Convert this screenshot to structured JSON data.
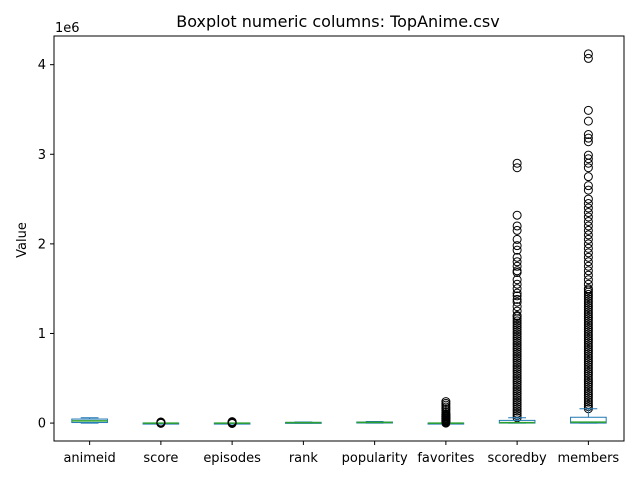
{
  "chart_data": {
    "type": "box",
    "title": "Boxplot numeric columns: TopAnime.csv",
    "xlabel": "",
    "ylabel": "Value",
    "y_offset_text": "1e6",
    "y_scale_factor": 1000000,
    "ylim": [
      -0.2,
      4.32
    ],
    "yticks": [
      0,
      1,
      2,
      3,
      4
    ],
    "grid": false,
    "legend": "none",
    "colors": {
      "box": "#1f77b4",
      "median": "#2ca02c",
      "flier_edge": "#000000",
      "axes": "#000000"
    },
    "categories": [
      "animeid",
      "score",
      "episodes",
      "rank",
      "popularity",
      "favorites",
      "scoredby",
      "members"
    ],
    "boxes": [
      {
        "name": "animeid",
        "whislo": 0.0,
        "q1": 0.006,
        "med": 0.025,
        "q3": 0.045,
        "whishi": 0.06,
        "fliers": []
      },
      {
        "name": "score",
        "whislo": 0.0,
        "q1": 0.0,
        "med": 0.0,
        "q3": 0.0,
        "whishi": 0.0,
        "fliers": [
          0.003,
          0.006,
          0.009,
          0.012,
          -0.003
        ]
      },
      {
        "name": "episodes",
        "whislo": 0.0,
        "q1": 0.0,
        "med": 0.0,
        "q3": 0.0,
        "whishi": 0.0,
        "fliers": [
          0.004,
          0.008,
          0.012,
          0.016,
          -0.004
        ]
      },
      {
        "name": "rank",
        "whislo": 0.0,
        "q1": 0.002,
        "med": 0.005,
        "q3": 0.008,
        "whishi": 0.012,
        "fliers": []
      },
      {
        "name": "popularity",
        "whislo": 0.0,
        "q1": 0.003,
        "med": 0.008,
        "q3": 0.012,
        "whishi": 0.018,
        "fliers": []
      },
      {
        "name": "favorites",
        "whislo": 0.0,
        "q1": 0.0,
        "med": 0.0,
        "q3": 0.0,
        "whishi": 0.0,
        "fliers": [
          0.01,
          0.02,
          0.03,
          0.04,
          0.05,
          0.06,
          0.07,
          0.08,
          0.09,
          0.1,
          0.12,
          0.14,
          0.16,
          0.18,
          0.2,
          0.22,
          0.24
        ]
      },
      {
        "name": "scoredby",
        "whislo": 0.0,
        "q1": 0.0,
        "med": 0.005,
        "q3": 0.03,
        "whishi": 0.06,
        "fliers": [
          2.9,
          2.85,
          2.32,
          2.2,
          2.15,
          2.05,
          1.98,
          1.93,
          1.85,
          1.8,
          1.75,
          1.7,
          1.68,
          1.6,
          1.55,
          1.5,
          1.45,
          1.42,
          1.38,
          1.35,
          1.3,
          1.25,
          1.2
        ]
      },
      {
        "name": "members",
        "whislo": 0.0,
        "q1": 0.0,
        "med": 0.01,
        "q3": 0.065,
        "whishi": 0.16,
        "fliers": [
          4.12,
          4.07,
          3.49,
          3.37,
          3.22,
          3.18,
          3.14,
          2.99,
          2.95,
          2.9,
          2.85,
          2.75,
          2.65,
          2.6,
          2.5,
          2.45,
          2.4,
          2.35,
          2.3,
          2.25,
          2.2,
          2.15,
          2.1,
          2.05,
          2.0,
          1.95,
          1.9,
          1.85,
          1.8,
          1.75,
          1.7,
          1.65,
          1.6,
          1.55,
          1.5
        ]
      }
    ],
    "dense_flier_bands": [
      {
        "name": "favorites",
        "from": 0.0,
        "to": 0.12
      },
      {
        "name": "scoredby",
        "from": 0.06,
        "to": 1.2
      },
      {
        "name": "members",
        "from": 0.16,
        "to": 1.5
      }
    ]
  }
}
